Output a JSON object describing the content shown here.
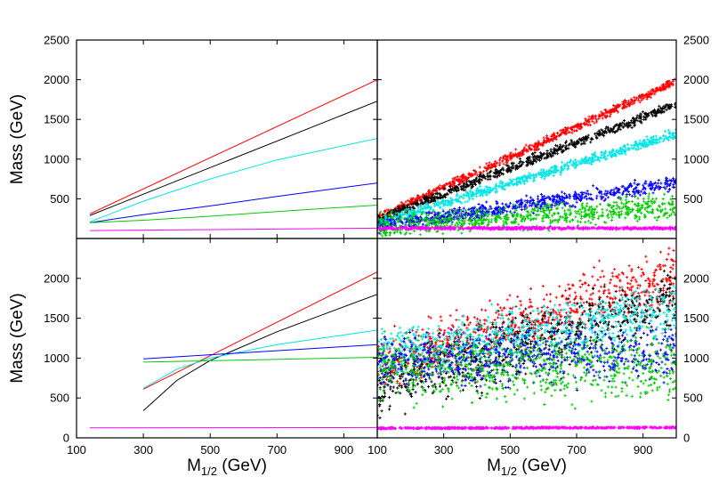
{
  "chart_data": [
    {
      "type": "line",
      "panel": "top-left",
      "ylabel": "Mass (GeV)",
      "xlim": [
        100,
        1000
      ],
      "ylim": [
        0,
        2500
      ],
      "x_ticks": [
        "100",
        "300",
        "500",
        "700",
        "900"
      ],
      "y_ticks": [
        "500",
        "1000",
        "1500",
        "2000",
        "2500"
      ],
      "series": [
        {
          "color": "#ff0000",
          "x": [
            140,
            1000
          ],
          "y": [
            310,
            2000
          ]
        },
        {
          "color": "#000000",
          "x": [
            140,
            1000
          ],
          "y": [
            290,
            1730
          ]
        },
        {
          "color": "#00e5e5",
          "x": [
            140,
            300,
            500,
            700,
            1000
          ],
          "y": [
            210,
            470,
            750,
            990,
            1260
          ]
        },
        {
          "color": "#0000ff",
          "x": [
            140,
            300,
            500,
            700,
            1000
          ],
          "y": [
            200,
            300,
            410,
            530,
            700
          ]
        },
        {
          "color": "#00cc00",
          "x": [
            140,
            300,
            500,
            700,
            1000
          ],
          "y": [
            200,
            230,
            280,
            340,
            420
          ]
        },
        {
          "color": "#ff00ff",
          "x": [
            140,
            1000
          ],
          "y": [
            100,
            130
          ]
        }
      ]
    },
    {
      "type": "scatter",
      "panel": "top-right",
      "xlim": [
        100,
        1000
      ],
      "ylim": [
        0,
        2500
      ],
      "y_ticks": [
        "500",
        "1000",
        "1500",
        "2000",
        "2500"
      ],
      "series": [
        {
          "color": "#ff0000",
          "band": [
            [
              100,
              260,
              25
            ],
            [
              1000,
              1980,
              25
            ]
          ]
        },
        {
          "color": "#000000",
          "band": [
            [
              100,
              240,
              30
            ],
            [
              1000,
              1690,
              30
            ]
          ]
        },
        {
          "color": "#00e5e5",
          "band": [
            [
              100,
              190,
              30
            ],
            [
              1000,
              1320,
              30
            ]
          ]
        },
        {
          "color": "#0000ff",
          "band": [
            [
              100,
              150,
              45
            ],
            [
              1000,
              700,
              45
            ]
          ]
        },
        {
          "color": "#00cc00",
          "band": [
            [
              100,
              150,
              70
            ],
            [
              1000,
              400,
              70
            ]
          ]
        },
        {
          "color": "#ff00ff",
          "band": [
            [
              100,
              130,
              8
            ],
            [
              1000,
              130,
              8
            ]
          ]
        }
      ]
    },
    {
      "type": "line",
      "panel": "bottom-left",
      "xlabel": "M1/2 (GeV)",
      "ylabel": "Mass (GeV)",
      "xlim": [
        100,
        1000
      ],
      "ylim": [
        0,
        2500
      ],
      "x_ticks": [
        "100",
        "300",
        "500",
        "700",
        "900"
      ],
      "y_ticks": [
        "0",
        "500",
        "1000",
        "1500",
        "2000"
      ],
      "series": [
        {
          "color": "#ff0000",
          "x": [
            300,
            1000
          ],
          "y": [
            610,
            2080
          ]
        },
        {
          "color": "#000000",
          "x": [
            300,
            400,
            500,
            700,
            1000
          ],
          "y": [
            340,
            720,
            970,
            1330,
            1800
          ]
        },
        {
          "color": "#00e5e5",
          "x": [
            300,
            400,
            500,
            700,
            1000
          ],
          "y": [
            620,
            860,
            1000,
            1170,
            1350
          ]
        },
        {
          "color": "#0000ff",
          "x": [
            300,
            1000
          ],
          "y": [
            990,
            1170
          ]
        },
        {
          "color": "#00cc00",
          "x": [
            300,
            1000
          ],
          "y": [
            950,
            1010
          ]
        },
        {
          "color": "#ff00ff",
          "x": [
            140,
            1000
          ],
          "y": [
            125,
            130
          ]
        }
      ]
    },
    {
      "type": "scatter",
      "panel": "bottom-right",
      "xlabel": "M1/2 (GeV)",
      "xlim": [
        100,
        1000
      ],
      "ylim": [
        0,
        2500
      ],
      "x_ticks": [
        "100",
        "300",
        "500",
        "700",
        "900"
      ],
      "y_ticks": [
        "0",
        "500",
        "1000",
        "1500",
        "2000"
      ],
      "series": [
        {
          "color": "#ff0000",
          "band": [
            [
              100,
              900,
              160
            ],
            [
              1000,
              2050,
              180
            ]
          ]
        },
        {
          "color": "#000000",
          "band": [
            [
              100,
              650,
              200
            ],
            [
              1000,
              1750,
              170
            ]
          ]
        },
        {
          "color": "#00e5e5",
          "band": [
            [
              100,
              1050,
              150
            ],
            [
              1000,
              1600,
              160
            ]
          ]
        },
        {
          "color": "#0000ff",
          "band": [
            [
              100,
              950,
              150
            ],
            [
              1000,
              1100,
              180
            ]
          ]
        },
        {
          "color": "#00cc00",
          "band": [
            [
              100,
              850,
              200
            ],
            [
              1000,
              900,
              200
            ]
          ]
        },
        {
          "color": "#ff00ff",
          "band": [
            [
              100,
              120,
              5
            ],
            [
              1000,
              130,
              5
            ]
          ]
        }
      ]
    }
  ]
}
